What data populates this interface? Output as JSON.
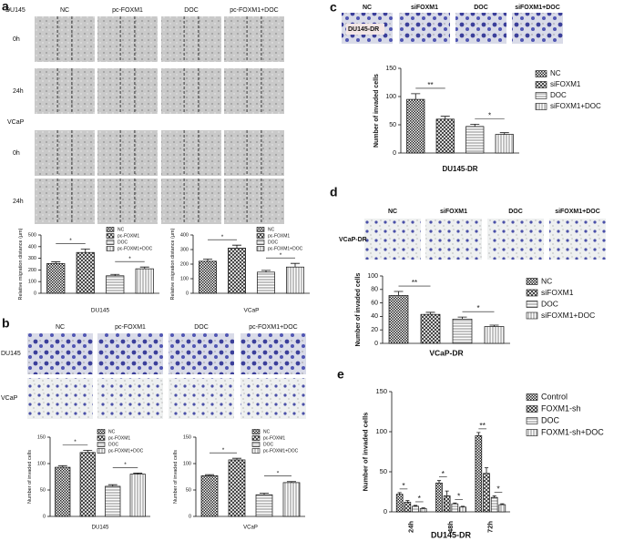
{
  "figure": {
    "panel_labels": [
      "a",
      "b",
      "c",
      "d",
      "e"
    ],
    "a": {
      "cell_lines": [
        "DU145",
        "VCaP"
      ],
      "columns": [
        "NC",
        "pc-FOXM1",
        "DOC",
        "pc-FOXM1+DOC"
      ],
      "rows": [
        "0h",
        "24h"
      ]
    },
    "b": {
      "columns": [
        "NC",
        "pc-FOXM1",
        "DOC",
        "pc-FOXM1+DOC"
      ],
      "rows": [
        "DU145",
        "VCaP"
      ]
    },
    "c": {
      "columns": [
        "NC",
        "siFOXM1",
        "DOC",
        "siFOXM1+DOC"
      ],
      "row": "DU145-DR"
    },
    "d": {
      "columns": [
        "NC",
        "siFOXM1",
        "DOC",
        "siFOXM1+DOC"
      ],
      "row": "VCaP-DR"
    }
  },
  "chart_data": [
    {
      "type": "bar",
      "categories": [
        "NC",
        "pc-FOXM1",
        "DOC",
        "pc-FOXM1+DOC"
      ],
      "values": [
        255,
        350,
        150,
        210
      ],
      "errors": [
        15,
        30,
        12,
        15
      ],
      "ylim": [
        0,
        500
      ],
      "yticks": [
        0,
        100,
        200,
        300,
        400,
        500
      ],
      "ylabel": "Relative migration distance (μm)",
      "xlabel": "DU145",
      "patterns": [
        "checker",
        "cross",
        "hlines",
        "vlines"
      ],
      "legend": "top-right",
      "annotations": [
        {
          "text": "*",
          "between": [
            "NC",
            "pc-FOXM1"
          ]
        },
        {
          "text": "*",
          "between": [
            "DOC",
            "pc-FOXM1+DOC"
          ]
        }
      ]
    },
    {
      "type": "bar",
      "categories": [
        "NC",
        "pc-FOXM1",
        "DOC",
        "pc-FOXM1+DOC"
      ],
      "values": [
        220,
        310,
        145,
        180
      ],
      "errors": [
        15,
        20,
        12,
        25
      ],
      "ylim": [
        0,
        400
      ],
      "yticks": [
        0,
        100,
        200,
        300,
        400
      ],
      "ylabel": "Relative migration distance (μm)",
      "xlabel": "VCaP",
      "patterns": [
        "checker",
        "cross",
        "hlines",
        "vlines"
      ],
      "legend": "top-right",
      "annotations": [
        {
          "text": "*",
          "between": [
            "NC",
            "pc-FOXM1"
          ]
        },
        {
          "text": "*",
          "between": [
            "DOC",
            "pc-FOXM1+DOC"
          ]
        }
      ]
    },
    {
      "type": "bar",
      "categories": [
        "NC",
        "pc-FOXM1",
        "DOC",
        "pc-FOXM1+DOC"
      ],
      "values": [
        93,
        121,
        57,
        80
      ],
      "errors": [
        3,
        4,
        3,
        2
      ],
      "ylim": [
        0,
        150
      ],
      "yticks": [
        0,
        50,
        100,
        150
      ],
      "ylabel": "Number of invaded cells",
      "xlabel": "DU145",
      "patterns": [
        "checker",
        "cross",
        "hlines",
        "vlines"
      ],
      "legend": "top-right",
      "annotations": [
        {
          "text": "*",
          "between": [
            "NC",
            "pc-FOXM1"
          ]
        },
        {
          "text": "*",
          "between": [
            "DOC",
            "pc-FOXM1+DOC"
          ]
        }
      ]
    },
    {
      "type": "bar",
      "categories": [
        "NC",
        "pc-FOXM1",
        "DOC",
        "pc-FOXM1+DOC"
      ],
      "values": [
        77,
        107,
        41,
        64
      ],
      "errors": [
        2,
        3,
        3,
        2
      ],
      "ylim": [
        0,
        150
      ],
      "yticks": [
        0,
        50,
        100,
        150
      ],
      "ylabel": "Number of invaded cells",
      "xlabel": "VCaP",
      "patterns": [
        "checker",
        "cross",
        "hlines",
        "vlines"
      ],
      "legend": "top-right",
      "annotations": [
        {
          "text": "*",
          "between": [
            "NC",
            "pc-FOXM1"
          ]
        },
        {
          "text": "*",
          "between": [
            "DOC",
            "pc-FOXM1+DOC"
          ]
        }
      ]
    },
    {
      "type": "bar",
      "categories": [
        "NC",
        "siFOXM1",
        "DOC",
        "siFOXM1+DOC"
      ],
      "values": [
        95,
        60,
        47,
        33
      ],
      "errors": [
        10,
        5,
        4,
        3
      ],
      "ylim": [
        0,
        150
      ],
      "yticks": [
        0,
        50,
        100,
        150
      ],
      "ylabel": "Number of invaded cells",
      "xlabel": "DU145-DR",
      "patterns": [
        "checker",
        "cross",
        "hlines",
        "vlines"
      ],
      "legend": "right",
      "annotations": [
        {
          "text": "**",
          "between": [
            "NC",
            "siFOXM1"
          ]
        },
        {
          "text": "*",
          "between": [
            "DOC",
            "siFOXM1+DOC"
          ]
        }
      ]
    },
    {
      "type": "bar",
      "categories": [
        "NC",
        "siFOXM1",
        "DOC",
        "siFOXM1+DOC"
      ],
      "values": [
        71,
        43,
        36,
        25
      ],
      "errors": [
        6,
        3,
        3,
        2
      ],
      "ylim": [
        0,
        100
      ],
      "yticks": [
        0,
        20,
        40,
        60,
        80,
        100
      ],
      "ylabel": "Number of invaded cells",
      "xlabel": "VCaP-DR",
      "patterns": [
        "checker",
        "cross",
        "hlines",
        "vlines"
      ],
      "legend": "right",
      "annotations": [
        {
          "text": "**",
          "between": [
            "NC",
            "siFOXM1"
          ]
        },
        {
          "text": "*",
          "between": [
            "DOC",
            "siFOXM1+DOC"
          ]
        }
      ]
    },
    {
      "type": "bar",
      "categories": [
        "24h",
        "48h",
        "72h"
      ],
      "series": [
        {
          "name": "Control",
          "pattern": "checker",
          "values": [
            22,
            36,
            95
          ],
          "errors": [
            2,
            3,
            4
          ]
        },
        {
          "name": "FOXM1-sh",
          "pattern": "cross",
          "values": [
            12,
            20,
            48
          ],
          "errors": [
            2,
            6,
            7
          ]
        },
        {
          "name": "DOC",
          "pattern": "hlines",
          "values": [
            7,
            10,
            18
          ],
          "errors": [
            1,
            1,
            2
          ]
        },
        {
          "name": "FOXM1-sh+DOC",
          "pattern": "vlines",
          "values": [
            4,
            6,
            9
          ],
          "errors": [
            1,
            1,
            1
          ]
        }
      ],
      "ylim": [
        0,
        150
      ],
      "yticks": [
        0,
        50,
        100,
        150
      ],
      "ylabel": "Number of invaded cells",
      "xlabel": "DU145-DR",
      "legend": "right",
      "annotations": [
        {
          "text": "*",
          "category": "24h",
          "between": [
            "Control",
            "FOXM1-sh"
          ]
        },
        {
          "text": "*",
          "category": "24h",
          "between": [
            "DOC",
            "FOXM1-sh+DOC"
          ]
        },
        {
          "text": "*",
          "category": "48h",
          "between": [
            "Control",
            "FOXM1-sh"
          ]
        },
        {
          "text": "*",
          "category": "48h",
          "between": [
            "DOC",
            "FOXM1-sh+DOC"
          ]
        },
        {
          "text": "**",
          "category": "72h",
          "between": [
            "Control",
            "FOXM1-sh"
          ]
        },
        {
          "text": "*",
          "category": "72h",
          "between": [
            "DOC",
            "FOXM1-sh+DOC"
          ]
        }
      ]
    }
  ]
}
